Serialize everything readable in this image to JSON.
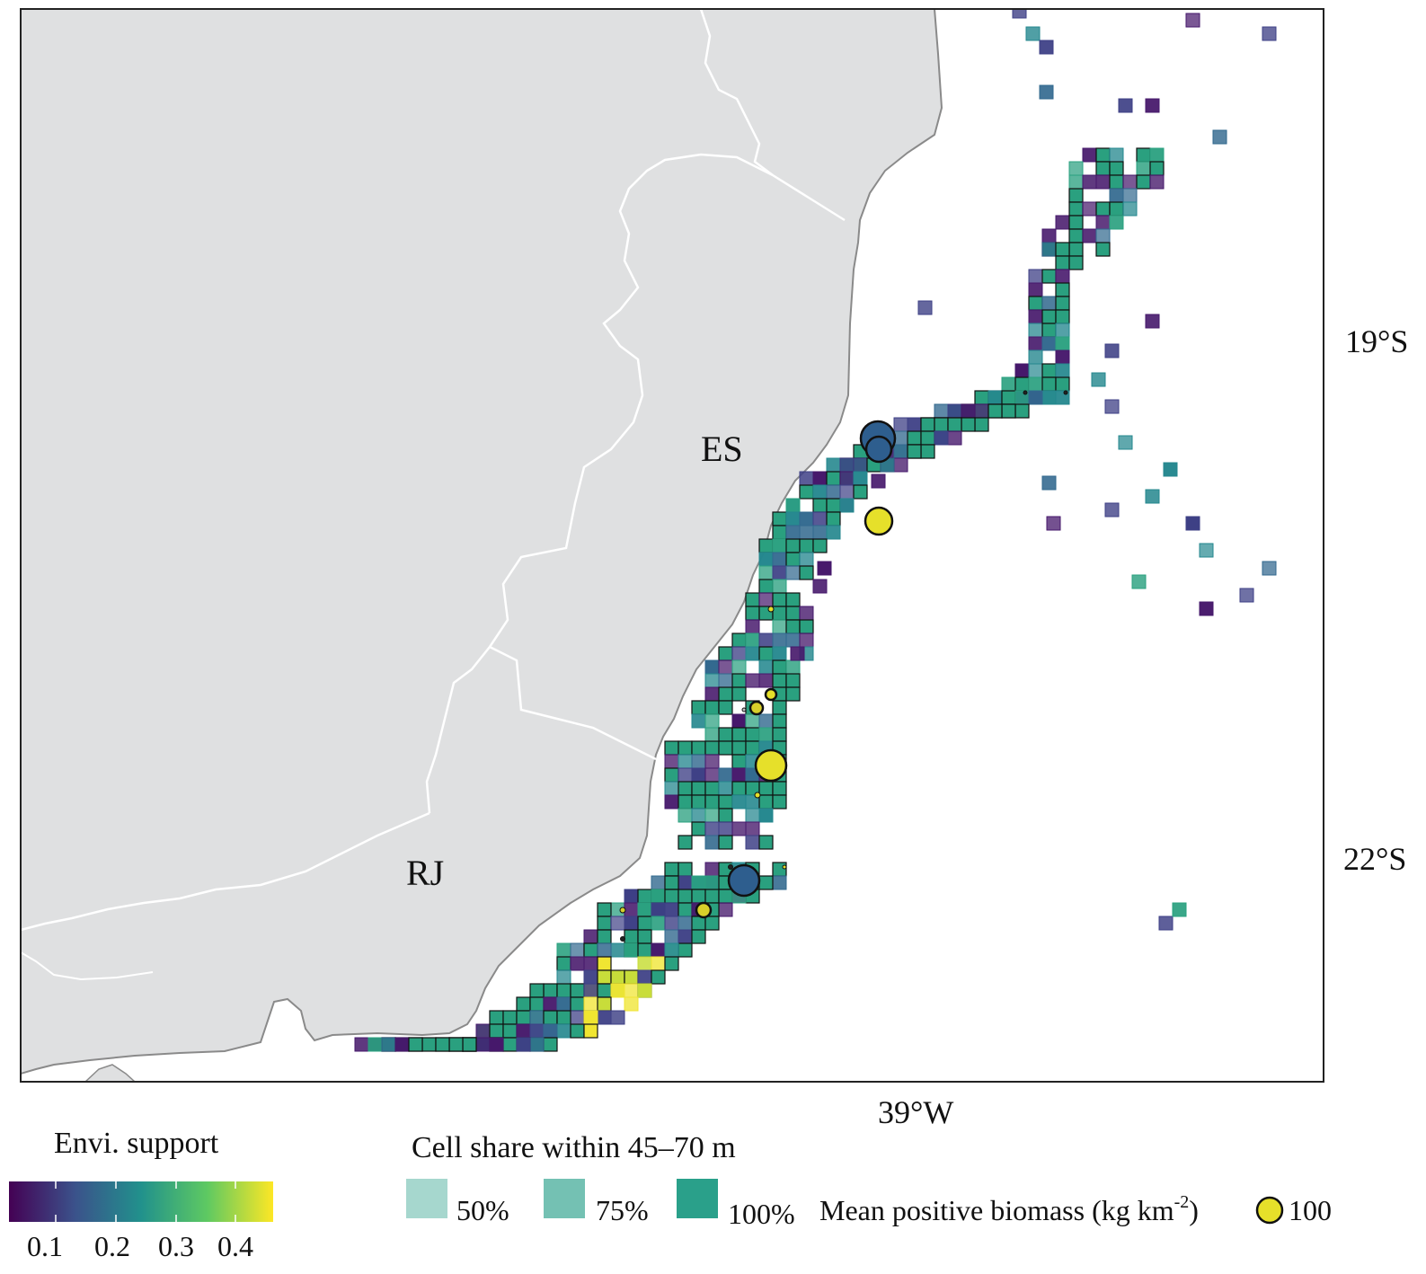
{
  "map": {
    "state_labels": [
      "ES",
      "RJ"
    ],
    "lat_labels": [
      "19°S",
      "22°S"
    ],
    "lon_labels": [
      "39°W"
    ],
    "colors": {
      "land": "#dfe0e1",
      "state_border": "#ffffff",
      "coast_outline": "#8a8a8a",
      "frame": "#222222"
    }
  },
  "legend": {
    "envi_title": "Envi. support",
    "envi_ticks": [
      "0.1",
      "0.2",
      "0.3",
      "0.4"
    ],
    "envi_colors": [
      "#440154",
      "#3b528b",
      "#21918c",
      "#5ec962",
      "#fde725"
    ],
    "share_title": "Cell share within  45–70 m",
    "share_items": [
      {
        "label": "50%",
        "opacity": 0.5
      },
      {
        "label": "75%",
        "opacity": 0.75
      },
      {
        "label": "100%",
        "opacity": 1.0
      }
    ],
    "share_color": "#2aa08a",
    "biomass_label_prefix": "Mean positive biomass (kg km",
    "biomass_label_sup": "-2",
    "biomass_label_suffix": ")",
    "biomass_value": "100",
    "biomass_circle_color": "#e6e02a"
  }
}
